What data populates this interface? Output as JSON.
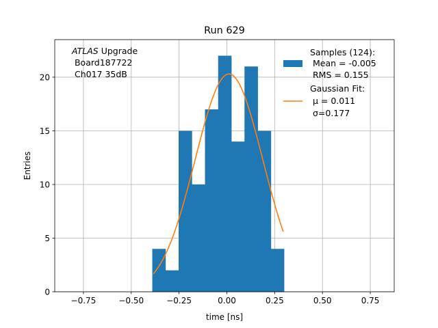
{
  "chart_data": {
    "type": "bar",
    "title": "Run 629",
    "xlabel": "time [ns]",
    "ylabel": "Entries",
    "xlim": [
      -0.9,
      0.875
    ],
    "ylim": [
      0,
      23.5
    ],
    "xticks": [
      -0.75,
      -0.5,
      -0.25,
      0.0,
      0.25,
      0.5,
      0.75
    ],
    "xtick_labels": [
      "−0.75",
      "−0.50",
      "−0.25",
      "0.00",
      "0.25",
      "0.50",
      "0.75"
    ],
    "yticks": [
      0,
      5,
      10,
      15,
      20
    ],
    "ytick_labels": [
      "0",
      "5",
      "10",
      "15",
      "20"
    ],
    "grid": true,
    "histogram": {
      "bin_edges": [
        -0.39,
        -0.3211,
        -0.2522,
        -0.1833,
        -0.1144,
        -0.0456,
        0.0233,
        0.0922,
        0.1611,
        0.23,
        0.2989
      ],
      "counts": [
        4,
        2,
        15,
        10,
        17,
        22,
        14,
        21,
        15,
        4
      ],
      "color": "#1f77b4"
    },
    "fit": {
      "type": "gaussian",
      "mu": 0.011,
      "sigma": 0.177,
      "amplitude": 20.3,
      "x_range": [
        -0.385,
        0.295
      ],
      "color": "#ff7f0e"
    },
    "annotation": {
      "italic": "ATLAS",
      "line1_rest": " Upgrade",
      "line2": " Board187722",
      "line3": " Ch017 35dB"
    },
    "legend": {
      "position": "top-right",
      "samples": {
        "line1": "Samples (124):",
        "line2": " Mean = -0.005",
        "line3": " RMS = 0.155"
      },
      "fit": {
        "line1": "Gaussian Fit:",
        "mu_label": " μ = 0.011",
        "sigma_label": " σ=0.177"
      }
    }
  }
}
